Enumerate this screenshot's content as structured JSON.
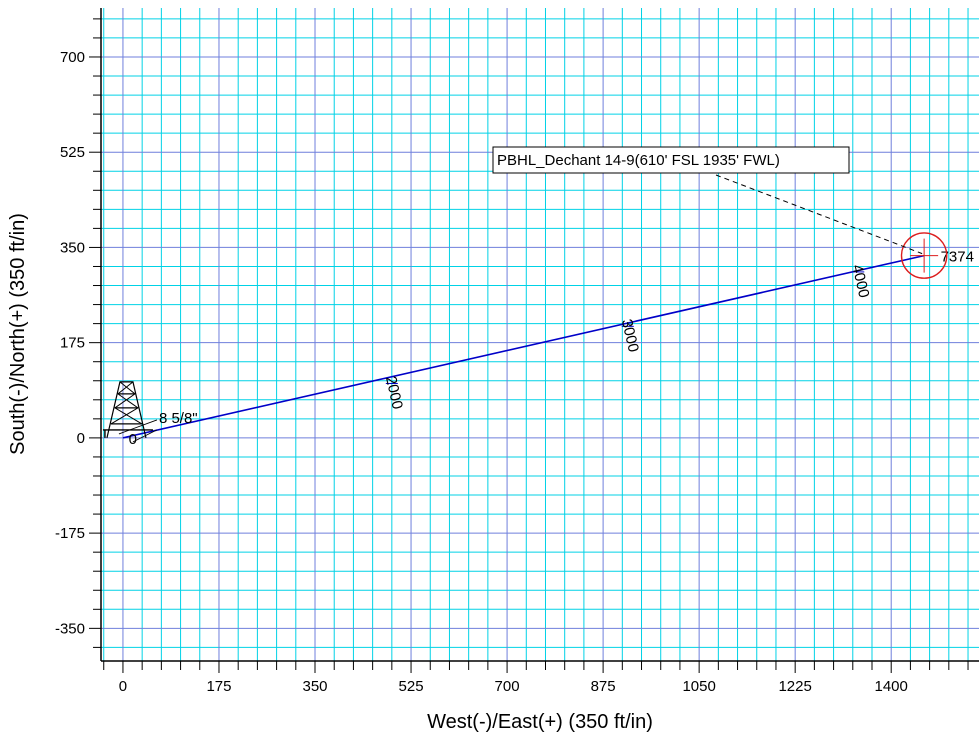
{
  "chart_data": {
    "type": "line",
    "title": "",
    "xlabel": "West(-)/East(+) (350 ft/in)",
    "ylabel": "South(-)/North(+) (350 ft/in)",
    "xlim": [
      -40,
      1560
    ],
    "ylim": [
      -410,
      790
    ],
    "xticks": [
      0,
      175,
      350,
      525,
      700,
      875,
      1050,
      1225,
      1400
    ],
    "yticks": [
      700,
      525,
      350,
      175,
      0,
      -175,
      -350
    ],
    "grid_minor_step": 35,
    "grid_major_step": 175,
    "colors": {
      "grid": "#00d2e6",
      "grid_major": "#6f7fdc",
      "well_path": "#0000c8",
      "target": "#dc1e1e",
      "axes": "#000000"
    },
    "series": [
      {
        "points": [
          [
            0,
            0
          ],
          [
            1460,
            335
          ]
        ]
      }
    ],
    "md_labels": [
      {
        "text": "0",
        "x": 25,
        "y": 0
      },
      {
        "text": "2000",
        "x": 490,
        "y": 100
      },
      {
        "text": "3000",
        "x": 920,
        "y": 205
      },
      {
        "text": "4000",
        "x": 1340,
        "y": 305
      },
      {
        "text": "7374",
        "x": 1490,
        "y": 335
      }
    ],
    "casing": {
      "text": "8 5/8\"",
      "x": 0,
      "y": 0
    },
    "target": {
      "label": "PBHL_Dechant 14-9(610' FSL 1935' FWL)",
      "x": 1460,
      "y": 335,
      "radius": 40
    },
    "rig_icon": "drilling-rig-icon"
  }
}
